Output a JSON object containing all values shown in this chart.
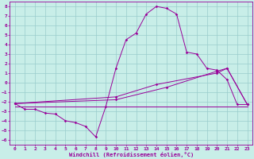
{
  "xlabel": "Windchill (Refroidissement éolien,°C)",
  "xlim": [
    -0.5,
    23.5
  ],
  "ylim": [
    -6.5,
    8.5
  ],
  "xticks": [
    0,
    1,
    2,
    3,
    4,
    5,
    6,
    7,
    8,
    9,
    10,
    11,
    12,
    13,
    14,
    15,
    16,
    17,
    18,
    19,
    20,
    21,
    22,
    23
  ],
  "yticks": [
    -6,
    -5,
    -4,
    -3,
    -2,
    -1,
    0,
    1,
    2,
    3,
    4,
    5,
    6,
    7,
    8
  ],
  "background_color": "#c8eee8",
  "line_color": "#990099",
  "grid_color": "#99cccc",
  "line1_x": [
    0,
    1,
    2,
    3,
    4,
    5,
    6,
    7,
    8,
    9,
    10,
    11,
    12,
    13,
    14,
    15,
    16,
    17,
    18,
    19,
    20,
    21,
    22,
    23
  ],
  "line1_y": [
    -2.2,
    -2.8,
    -2.8,
    -3.2,
    -3.3,
    -4.0,
    -4.2,
    -4.6,
    -5.7,
    -2.5,
    1.5,
    4.5,
    5.2,
    7.2,
    8.0,
    7.8,
    7.2,
    3.2,
    3.0,
    1.5,
    1.3,
    0.3,
    -2.3,
    -2.3
  ],
  "line2_x": [
    0,
    10,
    14,
    20,
    21,
    23
  ],
  "line2_y": [
    -2.2,
    -1.5,
    -0.2,
    1.0,
    1.5,
    -2.3
  ],
  "line3_x": [
    0,
    10,
    15,
    20,
    21,
    23
  ],
  "line3_y": [
    -2.2,
    -1.8,
    -0.5,
    1.2,
    1.5,
    -2.3
  ],
  "line4_x": [
    0,
    23
  ],
  "line4_y": [
    -2.5,
    -2.5
  ]
}
